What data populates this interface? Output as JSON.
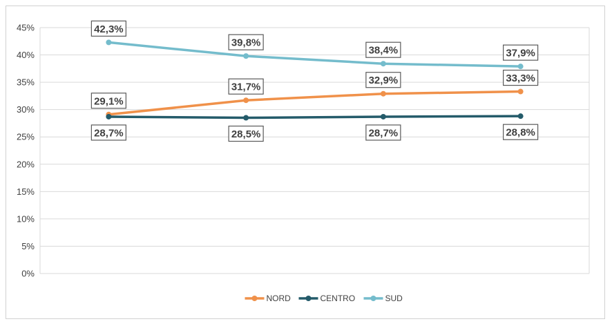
{
  "chart_data": {
    "type": "line",
    "categories": [
      "",
      "",
      "",
      ""
    ],
    "ylim": [
      0,
      45
    ],
    "y_ticks": [
      "0%",
      "5%",
      "10%",
      "15%",
      "20%",
      "25%",
      "30%",
      "35%",
      "40%",
      "45%"
    ],
    "grid": true,
    "legend_position": "bottom",
    "series": [
      {
        "name": "NORD",
        "color": "#f0914a",
        "values": [
          29.1,
          31.7,
          32.9,
          33.3
        ],
        "labels": [
          "29,1%",
          "31,7%",
          "32,9%",
          "33,3%"
        ],
        "label_side": "above"
      },
      {
        "name": "CENTRO",
        "color": "#245b6a",
        "values": [
          28.7,
          28.5,
          28.7,
          28.8
        ],
        "labels": [
          "28,7%",
          "28,5%",
          "28,7%",
          "28,8%"
        ],
        "label_side": "below"
      },
      {
        "name": "SUD",
        "color": "#74bccc",
        "values": [
          42.3,
          39.8,
          38.4,
          37.9
        ],
        "labels": [
          "42,3%",
          "39,8%",
          "38,4%",
          "37,9%"
        ],
        "label_side": "above"
      }
    ]
  }
}
